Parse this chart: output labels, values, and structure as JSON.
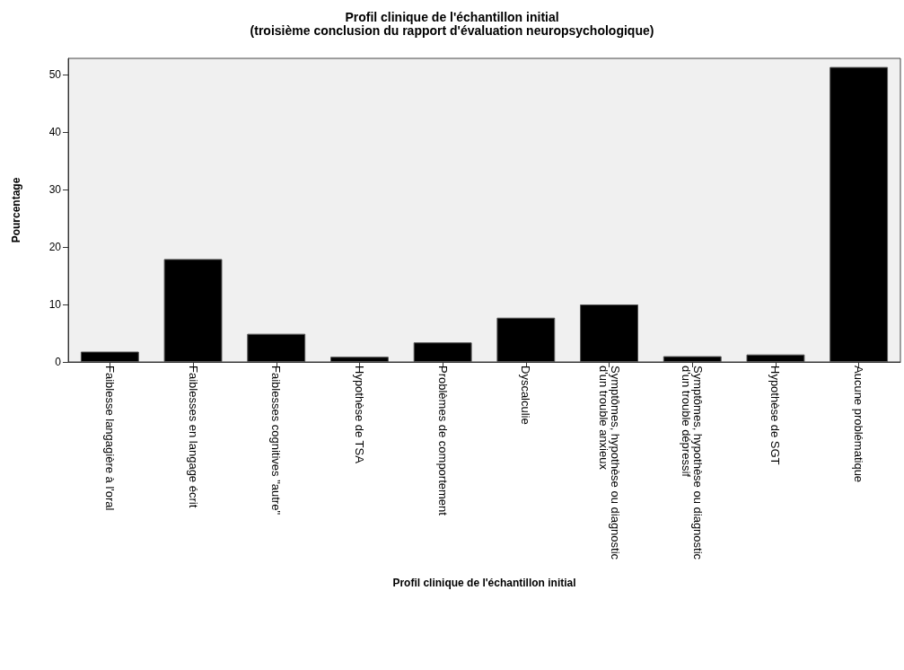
{
  "chart_data": {
    "type": "bar",
    "title": "Profil clinique de l'échantillon initial\n(troisième conclusion du rapport d'évaluation neuropsychologique)",
    "xlabel": "Profil clinique de l'échantillon initial",
    "ylabel": "Pourcentage",
    "categories": [
      "Faiblesse langagière à l'oral",
      "Faiblesses en langage écrit",
      "Faiblesses cognitives \"autre\"",
      "Hypothèse de TSA",
      "Problèmes de comportement",
      "Dyscalculie",
      "Symptômes, hypothèse ou diagnostic\nd'un trouble anxieux",
      "Symptômes, hypothèse ou diagnostic\nd'un trouble dépressif",
      "Hypothèse de SGT",
      "Aucune problématique"
    ],
    "values": [
      1.8,
      17.9,
      4.9,
      0.9,
      3.4,
      7.7,
      10.0,
      1.0,
      1.3,
      51.3
    ],
    "color": "#000000",
    "ylim": [
      0,
      52.8
    ],
    "yticks": [
      0,
      10,
      20,
      30,
      40,
      50
    ],
    "grid": false
  }
}
